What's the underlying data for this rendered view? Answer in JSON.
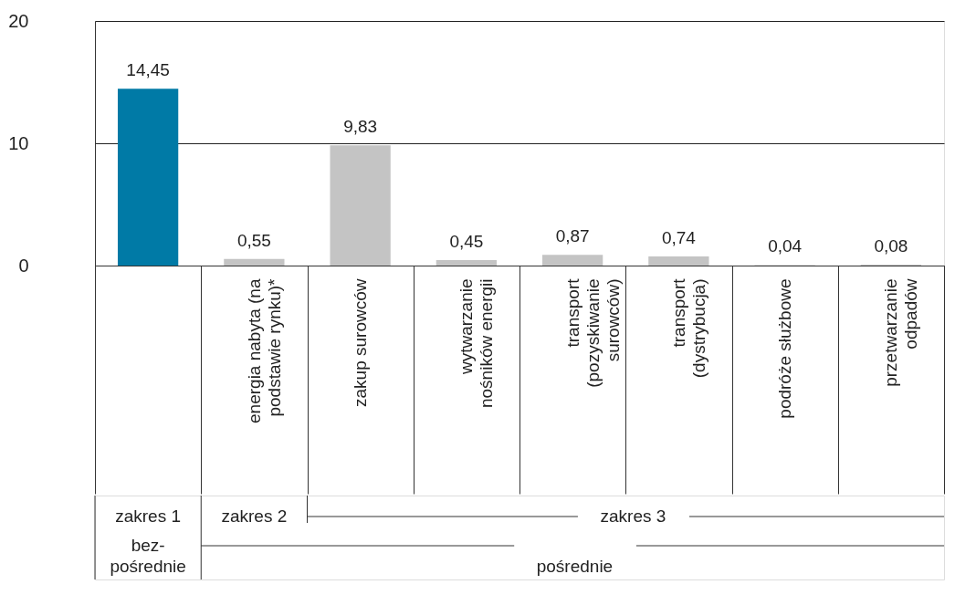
{
  "chart_data": {
    "type": "bar",
    "categories": [
      null,
      "energia nabyta (na podstawie rynku)*",
      "zakup surowców",
      "wytwarzanie nośników energii",
      "transport (pozyskiwanie surowców)",
      "transport (dystrybucja)",
      "podróże służbowe",
      "przetwarzanie odpadów"
    ],
    "values": [
      14.45,
      0.55,
      9.83,
      0.45,
      0.87,
      0.74,
      0.04,
      0.08
    ],
    "colors": [
      "#007aa6",
      "#c4c4c4",
      "#c4c4c4",
      "#c4c4c4",
      "#c4c4c4",
      "#c4c4c4",
      "#c4c4c4",
      "#c4c4c4"
    ],
    "value_labels": [
      "14,45",
      "0,55",
      "9,83",
      "0,45",
      "0,87",
      "0,74",
      "0,04",
      "0,08"
    ],
    "ylim": [
      0,
      20
    ],
    "yticks": [
      0,
      10,
      20
    ],
    "grid": "y",
    "annotations": [
      "zakres 1",
      "zakres 2",
      "zakres 3",
      "bez-pośrednie",
      "pośrednie"
    ]
  }
}
